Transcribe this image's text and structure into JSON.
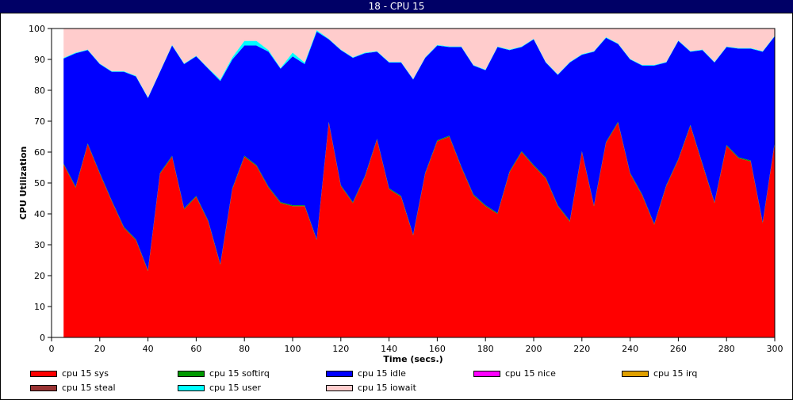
{
  "window": {
    "title": "18 - CPU 15"
  },
  "chart_data": {
    "type": "area",
    "stacked": true,
    "xlabel": "Time (secs.)",
    "ylabel": "CPU Utilization",
    "xlim": [
      0,
      300
    ],
    "ylim": [
      0,
      100
    ],
    "xticks": [
      0,
      20,
      40,
      60,
      80,
      100,
      120,
      140,
      160,
      180,
      200,
      220,
      240,
      260,
      280,
      300
    ],
    "yticks": [
      0,
      10,
      20,
      30,
      40,
      50,
      60,
      70,
      80,
      90,
      100
    ],
    "x": [
      5,
      10,
      15,
      20,
      25,
      30,
      35,
      40,
      45,
      50,
      55,
      60,
      65,
      70,
      75,
      80,
      85,
      90,
      95,
      100,
      105,
      110,
      115,
      120,
      125,
      130,
      135,
      140,
      145,
      150,
      155,
      160,
      165,
      170,
      175,
      180,
      185,
      190,
      195,
      200,
      205,
      210,
      215,
      220,
      225,
      230,
      235,
      240,
      245,
      250,
      255,
      260,
      265,
      270,
      275,
      280,
      285,
      290,
      295,
      300
    ],
    "series": [
      {
        "name": "cpu 15 sys",
        "color": "#ff0000",
        "values": [
          56,
          48.5,
          62.5,
          53,
          44,
          35.5,
          31.5,
          21.5,
          53,
          58.5,
          41.5,
          45.5,
          37.5,
          23.5,
          48,
          58.5,
          55.5,
          48.5,
          43.5,
          42.5,
          42.5,
          31.5,
          69.5,
          49,
          43.5,
          52,
          64,
          48,
          45.5,
          33,
          53,
          63.5,
          65,
          55,
          46,
          42.5,
          40,
          53.5,
          60,
          55.5,
          51.5,
          42.5,
          37.5,
          60,
          42.5,
          63,
          69.5,
          53,
          46,
          36.5,
          49,
          57.5,
          68.5,
          56,
          43.5,
          62,
          58,
          57,
          37,
          63
        ]
      },
      {
        "name": "cpu 15 softirq",
        "color": "#009900",
        "values": [
          0.3,
          0.3,
          0.3,
          0.3,
          0.3,
          0.3,
          0.3,
          0.3,
          0.3,
          0.3,
          0.3,
          0.3,
          0.3,
          0.3,
          0.3,
          0.3,
          0.3,
          0.3,
          0.3,
          0.3,
          0.3,
          0.3,
          0.3,
          0.3,
          0.3,
          0.3,
          0.3,
          0.3,
          0.3,
          0.3,
          0.3,
          0.3,
          0.3,
          0.3,
          0.3,
          0.3,
          0.3,
          0.3,
          0.3,
          0.3,
          0.3,
          0.3,
          0.3,
          0.3,
          0.3,
          0.3,
          0.3,
          0.3,
          0.3,
          0.3,
          0.3,
          0.3,
          0.3,
          0.3,
          0.3,
          0.3,
          0.3,
          0.3,
          0.3,
          0.3
        ]
      },
      {
        "name": "cpu 15 idle",
        "color": "#0000ff",
        "values": [
          34,
          43.2,
          30.2,
          35.2,
          41.7,
          50.2,
          52.7,
          55.7,
          32.7,
          35.7,
          46.7,
          45.2,
          49.2,
          59.2,
          41.7,
          35.7,
          38.7,
          43.7,
          43.2,
          48.2,
          45.7,
          67.2,
          26.7,
          43.7,
          46.7,
          39.7,
          28.2,
          40.7,
          43.2,
          50.2,
          37.2,
          30.7,
          28.7,
          38.7,
          41.7,
          43.7,
          53.7,
          39.2,
          33.7,
          40.7,
          37.2,
          42.2,
          51.2,
          31.2,
          49.7,
          33.7,
          25.2,
          36.7,
          41.7,
          51.2,
          39.7,
          38.2,
          23.7,
          36.7,
          45.2,
          31.7,
          35.2,
          36.2,
          55.2,
          34.2
        ]
      },
      {
        "name": "cpu 15 nice",
        "color": "#ff00ff",
        "values": [
          0,
          0,
          0,
          0,
          0,
          0,
          0,
          0,
          0,
          0,
          0,
          0,
          0,
          0,
          0,
          0,
          0,
          0,
          0,
          0,
          0,
          0,
          0,
          0,
          0,
          0,
          0,
          0,
          0,
          0,
          0,
          0,
          0,
          0,
          0,
          0,
          0,
          0,
          0,
          0,
          0,
          0,
          0,
          0,
          0,
          0,
          0,
          0,
          0,
          0,
          0,
          0,
          0,
          0,
          0,
          0,
          0,
          0,
          0,
          0
        ]
      },
      {
        "name": "cpu 15 irq",
        "color": "#e0a000",
        "values": [
          0,
          0,
          0,
          0,
          0,
          0,
          0,
          0,
          0,
          0,
          0,
          0,
          0,
          0,
          0,
          0,
          0,
          0,
          0,
          0,
          0,
          0,
          0,
          0,
          0,
          0,
          0,
          0,
          0,
          0,
          0,
          0,
          0,
          0,
          0,
          0,
          0,
          0,
          0,
          0,
          0,
          0,
          0,
          0,
          0,
          0,
          0,
          0,
          0,
          0,
          0,
          0,
          0,
          0,
          0,
          0,
          0,
          0,
          0,
          0
        ]
      },
      {
        "name": "cpu 15 steal",
        "color": "#993333",
        "values": [
          0,
          0,
          0,
          0,
          0,
          0,
          0,
          0,
          0,
          0,
          0,
          0,
          0,
          0,
          0,
          0,
          0,
          0,
          0,
          0,
          0,
          0,
          0,
          0,
          0,
          0,
          0,
          0,
          0,
          0,
          0,
          0,
          0,
          0,
          0,
          0,
          0,
          0,
          0,
          0,
          0,
          0,
          0,
          0,
          0,
          0,
          0,
          0,
          0,
          0,
          0,
          0,
          0,
          0,
          0,
          0,
          0,
          0,
          0,
          0
        ]
      },
      {
        "name": "cpu 15 user",
        "color": "#00ffff",
        "values": [
          0.2,
          0.2,
          0.2,
          0.2,
          0.2,
          0.2,
          0.2,
          0.2,
          0.2,
          0.2,
          0.2,
          0.2,
          0.2,
          0.5,
          0.7,
          1.5,
          1.5,
          0.5,
          0.2,
          1.2,
          0.5,
          0.5,
          0.2,
          0.2,
          0.2,
          0.2,
          0.2,
          0.2,
          0.2,
          0.2,
          0.2,
          0.2,
          0.2,
          0.2,
          0.2,
          0.2,
          0.2,
          0.2,
          0.2,
          0.2,
          0.2,
          0.2,
          0.2,
          0.2,
          0.2,
          0.2,
          0.2,
          0.2,
          0.2,
          0.2,
          0.2,
          0.2,
          0.2,
          0.2,
          0.2,
          0.2,
          0.2,
          0.2,
          0.2,
          0.2
        ]
      },
      {
        "name": "cpu 15 iowait",
        "color": "#ffcccc",
        "values": [
          9.5,
          7.8,
          6.8,
          11.3,
          13.8,
          13.8,
          15.3,
          22.3,
          13.8,
          5.3,
          11.3,
          8.8,
          12.8,
          16.5,
          9.3,
          4,
          4,
          7,
          12.8,
          7.8,
          11,
          0.5,
          3.3,
          6.8,
          9.3,
          7.8,
          7.3,
          10.8,
          10.8,
          16.3,
          9.3,
          5.3,
          5.8,
          5.8,
          11.8,
          13.3,
          5.8,
          6.8,
          5.8,
          3.3,
          10.8,
          14.8,
          10.8,
          8.3,
          7.3,
          2.8,
          4.8,
          9.8,
          11.8,
          11.8,
          10.8,
          3.8,
          7.3,
          6.8,
          10.8,
          5.8,
          6.3,
          6.3,
          7.3,
          2.3
        ]
      }
    ],
    "legend": {
      "placement": "bottom",
      "columns": 5
    },
    "grid": false
  }
}
